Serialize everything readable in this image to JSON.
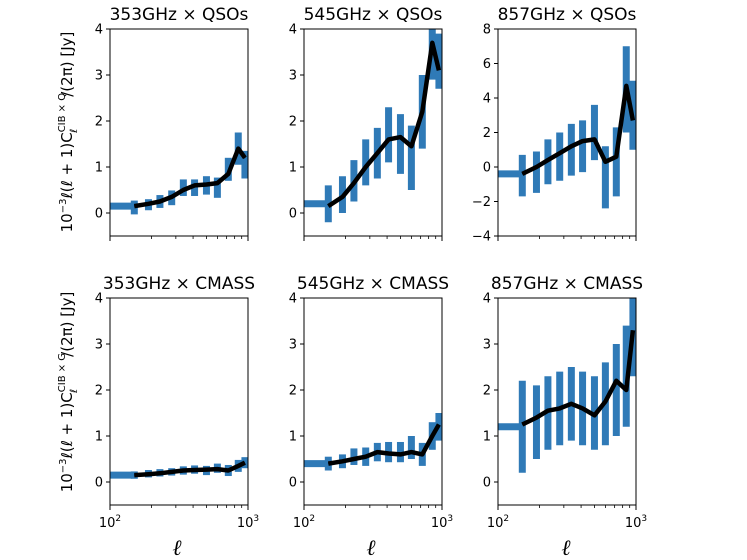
{
  "chart_data": {
    "type": "line",
    "xscale": "log",
    "xlim": [
      100,
      1000
    ],
    "xticks": [
      {
        "base": "10",
        "exp": "2"
      },
      {
        "base": "10",
        "exp": "3"
      }
    ],
    "xlabel": "ℓ",
    "ylabel_top": {
      "prefix": "10",
      "exp": "−3",
      "mid": "ℓ(ℓ + 1)C",
      "sup": "CIB × Q",
      "sub": "ℓ",
      "suffix": "/(2π) [Jy]"
    },
    "ylabel_bottom": {
      "prefix": "10",
      "exp": "−3",
      "mid": "ℓ(ℓ + 1)C",
      "sup": "CIB × G",
      "sub": "ℓ",
      "suffix": "/(2π) [Jy]"
    },
    "colors": {
      "errorbar": "#2f7ab7",
      "model": "#000000"
    },
    "panels": [
      {
        "title": "353GHz × QSOs",
        "ylim": [
          -0.5,
          4
        ],
        "yticks": [
          0,
          1,
          2,
          3,
          4
        ],
        "x": [
          120,
          150,
          190,
          230,
          280,
          340,
          410,
          500,
          600,
          720,
          850,
          950
        ],
        "y": [
          0.15,
          0.12,
          0.18,
          0.25,
          0.33,
          0.55,
          0.55,
          0.6,
          0.55,
          0.95,
          1.4,
          1.05
        ],
        "yerr": [
          0.08,
          0.15,
          0.12,
          0.14,
          0.16,
          0.18,
          0.18,
          0.2,
          0.22,
          0.25,
          0.35,
          0.3
        ],
        "model": [
          0.15,
          0.15,
          0.2,
          0.25,
          0.35,
          0.5,
          0.6,
          0.62,
          0.65,
          0.85,
          1.4,
          1.2
        ]
      },
      {
        "title": "545GHz × QSOs",
        "ylim": [
          -0.5,
          4
        ],
        "yticks": [
          0,
          1,
          2,
          3,
          4
        ],
        "x": [
          120,
          150,
          190,
          230,
          280,
          340,
          410,
          500,
          600,
          720,
          850,
          950
        ],
        "y": [
          0.2,
          0.2,
          0.4,
          0.7,
          1.1,
          1.3,
          1.7,
          1.5,
          1.2,
          2.2,
          3.7,
          3.3
        ],
        "yerr": [
          0.1,
          0.4,
          0.4,
          0.45,
          0.5,
          0.55,
          0.6,
          0.65,
          0.7,
          0.8,
          0.8,
          0.6
        ],
        "model": [
          0.2,
          0.15,
          0.35,
          0.65,
          1.0,
          1.3,
          1.6,
          1.65,
          1.45,
          2.2,
          3.7,
          3.1
        ]
      },
      {
        "title": "857GHz × QSOs",
        "ylim": [
          -4,
          8
        ],
        "yticks": [
          -4,
          -2,
          0,
          2,
          4,
          6,
          8
        ],
        "x": [
          120,
          150,
          190,
          230,
          280,
          340,
          410,
          500,
          600,
          720,
          850,
          950
        ],
        "y": [
          -0.4,
          -0.5,
          -0.3,
          0.3,
          0.6,
          1.0,
          1.2,
          2.0,
          -0.6,
          0.3,
          4.5,
          3.0
        ],
        "yerr": [
          0.15,
          1.2,
          1.2,
          1.3,
          1.4,
          1.5,
          1.5,
          1.6,
          1.8,
          2.0,
          2.5,
          2.0
        ],
        "model": [
          -0.4,
          -0.4,
          0.0,
          0.4,
          0.8,
          1.2,
          1.5,
          1.6,
          0.3,
          0.6,
          4.7,
          2.7
        ]
      },
      {
        "title": "353GHz × CMASS",
        "ylim": [
          -0.5,
          4
        ],
        "yticks": [
          0,
          1,
          2,
          3,
          4
        ],
        "x": [
          120,
          150,
          190,
          230,
          280,
          340,
          410,
          500,
          600,
          720,
          850,
          950
        ],
        "y": [
          0.15,
          0.15,
          0.18,
          0.2,
          0.22,
          0.25,
          0.27,
          0.25,
          0.3,
          0.25,
          0.35,
          0.42
        ],
        "yerr": [
          0.05,
          0.08,
          0.08,
          0.08,
          0.08,
          0.09,
          0.09,
          0.1,
          0.1,
          0.12,
          0.13,
          0.12
        ],
        "model": [
          0.15,
          0.15,
          0.17,
          0.19,
          0.22,
          0.25,
          0.26,
          0.27,
          0.28,
          0.25,
          0.35,
          0.42
        ]
      },
      {
        "title": "545GHz × CMASS",
        "ylim": [
          -0.5,
          4
        ],
        "yticks": [
          0,
          1,
          2,
          3,
          4
        ],
        "x": [
          120,
          150,
          190,
          230,
          280,
          340,
          410,
          500,
          600,
          720,
          850,
          950
        ],
        "y": [
          0.4,
          0.4,
          0.45,
          0.55,
          0.55,
          0.65,
          0.65,
          0.65,
          0.75,
          0.6,
          1.0,
          1.2
        ],
        "yerr": [
          0.05,
          0.15,
          0.15,
          0.18,
          0.2,
          0.2,
          0.22,
          0.22,
          0.25,
          0.25,
          0.3,
          0.3
        ],
        "model": [
          0.4,
          0.4,
          0.45,
          0.5,
          0.55,
          0.65,
          0.62,
          0.6,
          0.65,
          0.6,
          1.0,
          1.25
        ]
      },
      {
        "title": "857GHz × CMASS",
        "ylim": [
          -0.5,
          4
        ],
        "yticks": [
          0,
          1,
          2,
          3,
          4
        ],
        "x": [
          120,
          150,
          190,
          230,
          280,
          340,
          410,
          500,
          600,
          720,
          850,
          950
        ],
        "y": [
          1.2,
          1.2,
          1.3,
          1.5,
          1.6,
          1.7,
          1.6,
          1.5,
          1.7,
          2.0,
          2.3,
          3.2
        ],
        "yerr": [
          0.05,
          1.0,
          0.8,
          0.8,
          0.8,
          0.8,
          0.8,
          0.8,
          0.9,
          1.0,
          1.1,
          0.9
        ],
        "model": [
          1.2,
          1.25,
          1.4,
          1.55,
          1.6,
          1.7,
          1.6,
          1.45,
          1.75,
          2.2,
          2.0,
          3.3
        ]
      }
    ]
  }
}
